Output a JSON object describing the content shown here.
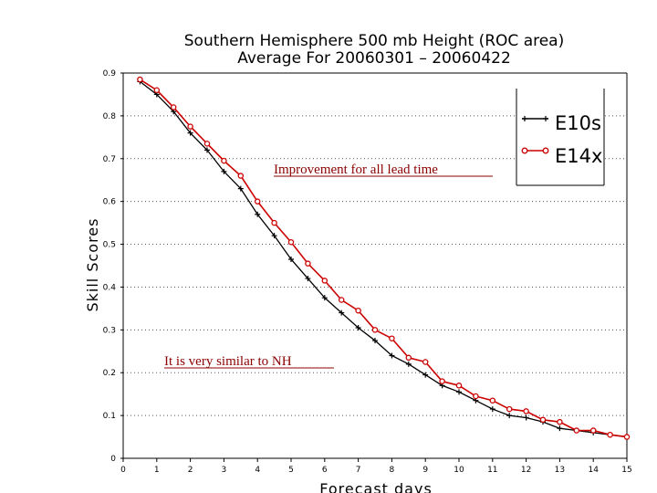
{
  "chart_data": {
    "type": "line",
    "title": "Southern Hemisphere 500 mb Height (ROC area)",
    "subtitle": "Average For 20060301 – 20060422",
    "xlabel": "Forecast days",
    "ylabel": "Skill Scores",
    "xlim": [
      0,
      15
    ],
    "ylim": [
      0,
      0.9
    ],
    "x_ticks": [
      "0",
      "1",
      "2",
      "3",
      "4",
      "5",
      "6",
      "7",
      "8",
      "9",
      "10",
      "11",
      "12",
      "13",
      "14",
      "15"
    ],
    "y_ticks": [
      "0",
      "0.1",
      "0.2",
      "0.3",
      "0.4",
      "0.5",
      "0.6",
      "0.7",
      "0.8",
      "0.9"
    ],
    "grid": true,
    "legend_position": "top-right",
    "x": [
      0.5,
      1,
      1.5,
      2,
      2.5,
      3,
      3.5,
      4,
      4.5,
      5,
      5.5,
      6,
      6.5,
      7,
      7.5,
      8,
      8.5,
      9,
      9.5,
      10,
      10.5,
      11,
      11.5,
      12,
      12.5,
      13,
      13.5,
      14,
      14.5,
      15
    ],
    "series": [
      {
        "name": "E10s",
        "color": "#000000",
        "marker": "cross",
        "values": [
          0.88,
          0.85,
          0.81,
          0.76,
          0.72,
          0.67,
          0.63,
          0.57,
          0.52,
          0.465,
          0.42,
          0.375,
          0.34,
          0.305,
          0.275,
          0.24,
          0.22,
          0.195,
          0.17,
          0.155,
          0.135,
          0.115,
          0.1,
          0.095,
          0.085,
          0.07,
          0.065,
          0.06,
          0.055,
          0.05
        ]
      },
      {
        "name": "E14x",
        "color": "#cc0000",
        "marker": "circle",
        "values": [
          0.885,
          0.86,
          0.82,
          0.775,
          0.735,
          0.695,
          0.66,
          0.6,
          0.55,
          0.505,
          0.455,
          0.415,
          0.37,
          0.345,
          0.3,
          0.28,
          0.235,
          0.225,
          0.18,
          0.17,
          0.145,
          0.135,
          0.115,
          0.11,
          0.09,
          0.085,
          0.065,
          0.065,
          0.055,
          0.05
        ]
      }
    ],
    "annotations": [
      "Improvement for all lead time",
      "It is very similar to NH"
    ]
  }
}
